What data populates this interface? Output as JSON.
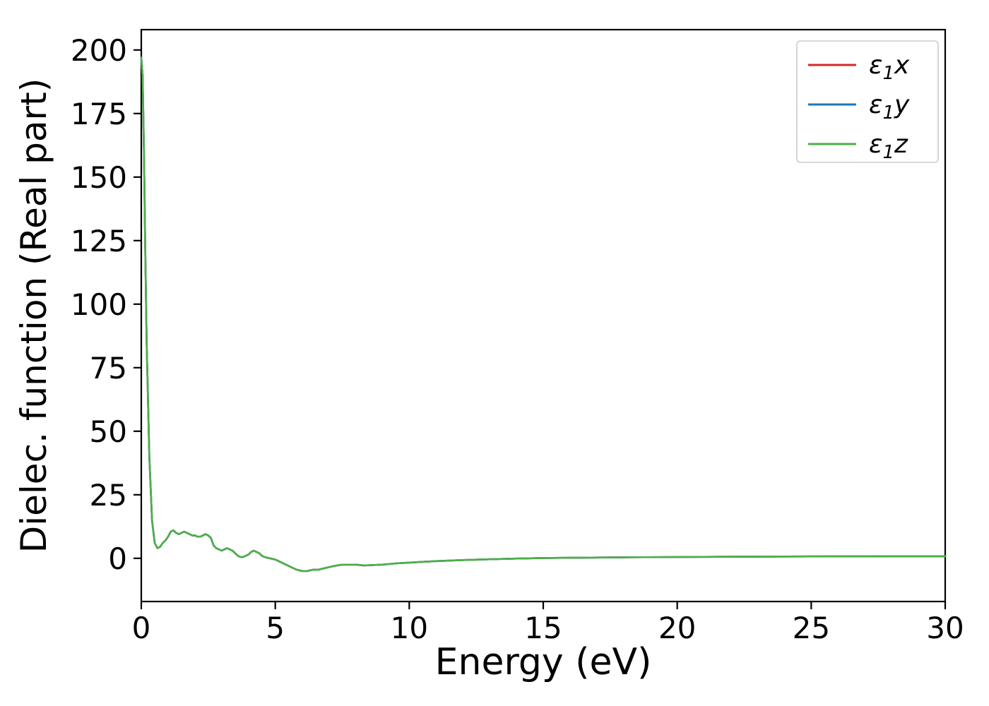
{
  "figure": {
    "background": "#ffffff",
    "axis_color": "#000000",
    "tick_label_color": "#000000"
  },
  "chart_data": {
    "type": "line",
    "xlabel": "Energy (eV)",
    "ylabel": "Dielec. function (Real part)",
    "xlim": [
      0,
      30
    ],
    "ylim": [
      -17,
      208
    ],
    "xticks": [
      0,
      5,
      10,
      15,
      20,
      25,
      30
    ],
    "yticks": [
      0,
      25,
      50,
      75,
      100,
      125,
      150,
      175,
      200
    ],
    "grid": false,
    "legend": {
      "position": "upper right",
      "entries": [
        {
          "base": "ε",
          "sub": "1",
          "var": "x",
          "color": "#d62728"
        },
        {
          "base": "ε",
          "sub": "1",
          "var": "y",
          "color": "#1f77b4"
        },
        {
          "base": "ε",
          "sub": "1",
          "var": "z",
          "color": "#4daf4a"
        }
      ]
    },
    "x": [
      0,
      0.05,
      0.1,
      0.15,
      0.2,
      0.3,
      0.4,
      0.5,
      0.6,
      0.7,
      0.8,
      0.9,
      1.0,
      1.1,
      1.2,
      1.3,
      1.4,
      1.5,
      1.6,
      1.7,
      1.8,
      1.9,
      2.0,
      2.1,
      2.2,
      2.3,
      2.4,
      2.5,
      2.6,
      2.7,
      2.8,
      2.9,
      3.0,
      3.1,
      3.2,
      3.3,
      3.4,
      3.5,
      3.6,
      3.7,
      3.8,
      3.9,
      4.0,
      4.1,
      4.2,
      4.3,
      4.4,
      4.5,
      4.6,
      4.8,
      5.0,
      5.2,
      5.4,
      5.6,
      5.8,
      6.0,
      6.2,
      6.4,
      6.6,
      6.8,
      7.0,
      7.2,
      7.5,
      7.8,
      8.0,
      8.3,
      8.6,
      9.0,
      9.5,
      10.0,
      10.5,
      11.0,
      12.0,
      13.0,
      14.0,
      15.0,
      16.0,
      18.0,
      20.0,
      22.0,
      24.0,
      26.0,
      28.0,
      30.0
    ],
    "series": [
      {
        "name": "eps1x",
        "color": "#d62728",
        "values": [
          197,
          190,
          160,
          120,
          85,
          40,
          15,
          6,
          4,
          4.5,
          6,
          7,
          8.5,
          10.5,
          11,
          10,
          9.5,
          10,
          10.5,
          10,
          9.5,
          9,
          9,
          8.5,
          8.5,
          9,
          9.5,
          9,
          8,
          5,
          4,
          3.5,
          3,
          3.5,
          4,
          3.5,
          3,
          2,
          1,
          0.5,
          0.5,
          1,
          1.5,
          2.5,
          3,
          2.5,
          2,
          1,
          0.5,
          0,
          -0.5,
          -1.5,
          -2.5,
          -3.5,
          -4.5,
          -5,
          -5,
          -4.5,
          -4.5,
          -4,
          -3.5,
          -3,
          -2.5,
          -2.5,
          -2.5,
          -2.8,
          -2.7,
          -2.5,
          -2,
          -1.7,
          -1.4,
          -1.1,
          -0.7,
          -0.4,
          -0.1,
          0.1,
          0.2,
          0.4,
          0.5,
          0.6,
          0.7,
          0.75,
          0.8,
          0.8
        ]
      },
      {
        "name": "eps1y",
        "color": "#1f77b4",
        "values": [
          197,
          190,
          160,
          120,
          85,
          40,
          15,
          6,
          4,
          4.5,
          6,
          7,
          8.5,
          10.5,
          11,
          10,
          9.5,
          10,
          10.5,
          10,
          9.5,
          9,
          9,
          8.5,
          8.5,
          9,
          9.5,
          9,
          8,
          5,
          4,
          3.5,
          3,
          3.5,
          4,
          3.5,
          3,
          2,
          1,
          0.5,
          0.5,
          1,
          1.5,
          2.5,
          3,
          2.5,
          2,
          1,
          0.5,
          0,
          -0.5,
          -1.5,
          -2.5,
          -3.5,
          -4.5,
          -5,
          -5,
          -4.5,
          -4.5,
          -4,
          -3.5,
          -3,
          -2.5,
          -2.5,
          -2.5,
          -2.8,
          -2.7,
          -2.5,
          -2,
          -1.7,
          -1.4,
          -1.1,
          -0.7,
          -0.4,
          -0.1,
          0.1,
          0.2,
          0.4,
          0.5,
          0.6,
          0.7,
          0.75,
          0.8,
          0.8
        ]
      },
      {
        "name": "eps1z",
        "color": "#4daf4a",
        "values": [
          197,
          190,
          160,
          120,
          85,
          40,
          15,
          6,
          4,
          4.5,
          6,
          7,
          8.5,
          10.5,
          11,
          10,
          9.5,
          10,
          10.5,
          10,
          9.5,
          9,
          9,
          8.5,
          8.5,
          9,
          9.5,
          9,
          8,
          5,
          4,
          3.5,
          3,
          3.5,
          4,
          3.5,
          3,
          2,
          1,
          0.5,
          0.5,
          1,
          1.5,
          2.5,
          3,
          2.5,
          2,
          1,
          0.5,
          0,
          -0.5,
          -1.5,
          -2.5,
          -3.5,
          -4.5,
          -5,
          -5,
          -4.5,
          -4.5,
          -4,
          -3.5,
          -3,
          -2.5,
          -2.5,
          -2.5,
          -2.8,
          -2.7,
          -2.5,
          -2,
          -1.7,
          -1.4,
          -1.1,
          -0.7,
          -0.4,
          -0.1,
          0.1,
          0.2,
          0.4,
          0.5,
          0.6,
          0.7,
          0.75,
          0.8,
          0.8
        ]
      }
    ]
  }
}
